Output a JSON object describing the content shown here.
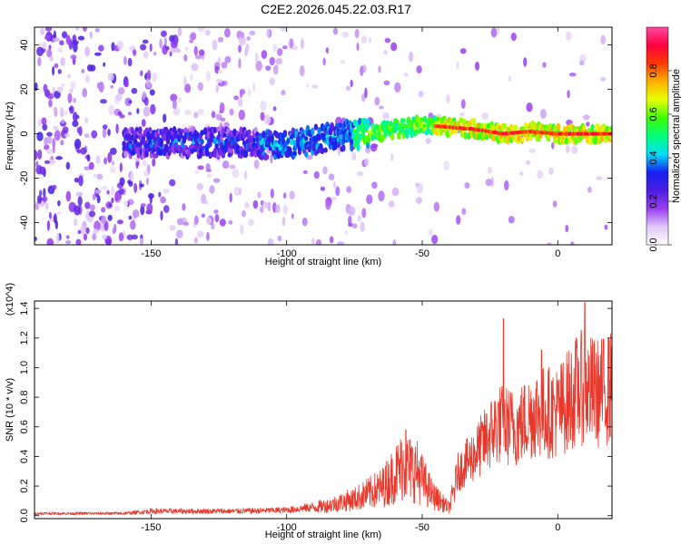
{
  "title": "C2E2.2026.045.22.03.R17",
  "chart_data": [
    {
      "type": "heatmap",
      "name": "spectrogram",
      "xlabel": "Height of straight line (km)",
      "ylabel": "Frequency (Hz)",
      "xlim": [
        -193,
        20
      ],
      "ylim": [
        -50,
        48
      ],
      "xticks": [
        -150,
        -100,
        -50,
        0
      ],
      "yticks": [
        -40,
        -20,
        0,
        20,
        40
      ],
      "ridge": [
        {
          "x": -160,
          "y": -4
        },
        {
          "x": -140,
          "y": -4
        },
        {
          "x": -120,
          "y": -4
        },
        {
          "x": -100,
          "y": -5
        },
        {
          "x": -90,
          "y": -3
        },
        {
          "x": -80,
          "y": -1
        },
        {
          "x": -70,
          "y": 0
        },
        {
          "x": -60,
          "y": 2
        },
        {
          "x": -50,
          "y": 4
        },
        {
          "x": -40,
          "y": 3
        },
        {
          "x": -30,
          "y": 2
        },
        {
          "x": -20,
          "y": 0
        },
        {
          "x": -10,
          "y": 1
        },
        {
          "x": 0,
          "y": 0
        },
        {
          "x": 10,
          "y": 0
        },
        {
          "x": 20,
          "y": 0
        }
      ],
      "colorbar": {
        "label": "Normalized spectral amplitude",
        "ticks": [
          0.0,
          0.2,
          0.4,
          0.6,
          0.8
        ],
        "range": [
          0,
          1
        ],
        "colors": [
          "#ffffff",
          "#e0c8f8",
          "#9a3cf0",
          "#4a1de0",
          "#1820f0",
          "#00e0f8",
          "#00ff7a",
          "#3cff00",
          "#e8ff00",
          "#ffb000",
          "#ff3a00",
          "#ff0040",
          "#ff4aa0"
        ]
      }
    },
    {
      "type": "line",
      "name": "snr",
      "xlabel": "Height of straight line (km)",
      "ylabel": "SNR (10 * v/v)",
      "yscale_label": "(x10^4)",
      "xlim": [
        -193,
        20
      ],
      "ylim": [
        -0.02,
        1.45
      ],
      "xticks": [
        -150,
        -100,
        -50,
        0
      ],
      "yticks": [
        0.0,
        0.2,
        0.4,
        0.6,
        0.8,
        1.0,
        1.2,
        1.4
      ],
      "color": "#e8382c",
      "envelope": [
        {
          "x": -193,
          "y": 0.02
        },
        {
          "x": -160,
          "y": 0.02
        },
        {
          "x": -150,
          "y": 0.04
        },
        {
          "x": -120,
          "y": 0.04
        },
        {
          "x": -100,
          "y": 0.05
        },
        {
          "x": -85,
          "y": 0.09
        },
        {
          "x": -75,
          "y": 0.15
        },
        {
          "x": -65,
          "y": 0.25
        },
        {
          "x": -57,
          "y": 0.45
        },
        {
          "x": -52,
          "y": 0.4
        },
        {
          "x": -46,
          "y": 0.18
        },
        {
          "x": -40,
          "y": 0.07
        },
        {
          "x": -37,
          "y": 0.35
        },
        {
          "x": -30,
          "y": 0.52
        },
        {
          "x": -22,
          "y": 0.75
        },
        {
          "x": -15,
          "y": 0.72
        },
        {
          "x": -8,
          "y": 0.85
        },
        {
          "x": 0,
          "y": 0.85
        },
        {
          "x": 8,
          "y": 1.05
        },
        {
          "x": 15,
          "y": 1.0
        },
        {
          "x": 20,
          "y": 1.05
        }
      ],
      "peaks": [
        {
          "x": -56,
          "y": 0.58
        },
        {
          "x": -20,
          "y": 1.33
        },
        {
          "x": -6,
          "y": 1.12
        },
        {
          "x": 10,
          "y": 1.44
        },
        {
          "x": 19,
          "y": 1.18
        }
      ]
    }
  ]
}
